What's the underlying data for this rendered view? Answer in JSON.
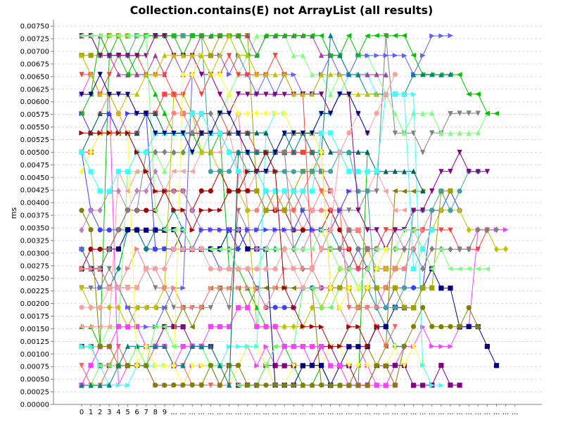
{
  "chart_data": {
    "type": "line",
    "title": "Collection.contains(E) not ArrayList (all results)",
    "xlabel": "",
    "ylabel": "ms",
    "ylim": [
      0,
      0.0076
    ],
    "yticks": [
      "0.00000",
      "0.00025",
      "0.00050",
      "0.00075",
      "0.00100",
      "0.00125",
      "0.00150",
      "0.00175",
      "0.00200",
      "0.00225",
      "0.00250",
      "0.00275",
      "0.00300",
      "0.00325",
      "0.00350",
      "0.00375",
      "0.00400",
      "0.00425",
      "0.00450",
      "0.00475",
      "0.00500",
      "0.00525",
      "0.00550",
      "0.00575",
      "0.00600",
      "0.00625",
      "0.00650",
      "0.00675",
      "0.00700",
      "0.00725",
      "0.00750"
    ],
    "x": [
      "0",
      "1",
      "2",
      "3",
      "4",
      "5",
      "6",
      "7",
      "8",
      "9",
      "...",
      "...",
      "...",
      "...",
      "...",
      "...",
      "...",
      "...",
      "...",
      "...",
      "...",
      "...",
      "...",
      "...",
      "...",
      "...",
      "...",
      "...",
      "...",
      "...",
      "...",
      "...",
      "...",
      "...",
      "...",
      "...",
      "...",
      "...",
      "...",
      "...",
      "...",
      "...",
      "...",
      "...",
      "...",
      "...",
      "...",
      "..."
    ],
    "levels": [
      0.00038,
      0.00077,
      0.00115,
      0.00154,
      0.00192,
      0.00231,
      0.00269,
      0.00308,
      0.00346,
      0.00385,
      0.00423,
      0.00462,
      0.005,
      0.00538,
      0.00577,
      0.00615,
      0.00654,
      0.00692,
      0.00731
    ],
    "grid": true,
    "legend": "none",
    "series_count": 40,
    "series_colors": [
      "#ff4040",
      "#4040ff",
      "#00c000",
      "#808080",
      "#ff40ff",
      "#808000",
      "#008080",
      "#800080",
      "#ff8080",
      "#80ff80",
      "#ffff40",
      "#40ffff",
      "#ffa0a0",
      "#c0c000",
      "#000080",
      "#a00000",
      "#006060",
      "#ff6060",
      "#6060ff",
      "#60ff60",
      "#c080c0",
      "#a0a000",
      "#40a0a0",
      "#a040a0"
    ],
    "marker_shapes": [
      "square",
      "circle",
      "triangle-up",
      "triangle-down",
      "triangle-right",
      "triangle-left",
      "diamond"
    ]
  }
}
